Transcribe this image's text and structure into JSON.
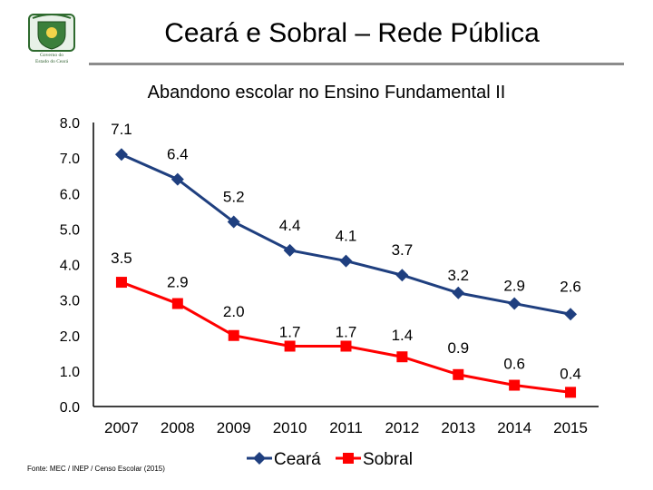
{
  "header": {
    "title": "Ceará e Sobral – Rede Pública",
    "logo_text_line1": "Governo do",
    "logo_text_line2": "Estado do Ceará"
  },
  "source": "Fonte: MEC / INEP / Censo Escolar (2015)",
  "colors": {
    "ceara": "#1f3f7f",
    "sobral": "#ff0000",
    "axis": "#000000"
  },
  "chart_data": {
    "type": "line",
    "title": "Abandono escolar no Ensino Fundamental II",
    "categories": [
      "2007",
      "2008",
      "2009",
      "2010",
      "2011",
      "2012",
      "2013",
      "2014",
      "2015"
    ],
    "y_ticks": [
      "8.0",
      "7.0",
      "6.0",
      "5.0",
      "4.0",
      "3.0",
      "2.0",
      "1.0",
      "0.0"
    ],
    "ylim": [
      0,
      8
    ],
    "series": [
      {
        "name": "Ceará",
        "values": [
          7.1,
          6.4,
          5.2,
          4.4,
          4.1,
          3.7,
          3.2,
          2.9,
          2.6
        ],
        "labels": [
          "7.1",
          "6.4",
          "5.2",
          "4.4",
          "4.1",
          "3.7",
          "3.2",
          "2.9",
          "2.6"
        ]
      },
      {
        "name": "Sobral",
        "values": [
          3.5,
          2.9,
          2.0,
          1.7,
          1.7,
          1.4,
          0.9,
          0.6,
          0.4
        ],
        "labels": [
          "3.5",
          "2.9",
          "2.0",
          "1.7",
          "1.7",
          "1.4",
          "0.9",
          "0.6",
          "0.4"
        ]
      }
    ],
    "legend": "bottom-center"
  }
}
